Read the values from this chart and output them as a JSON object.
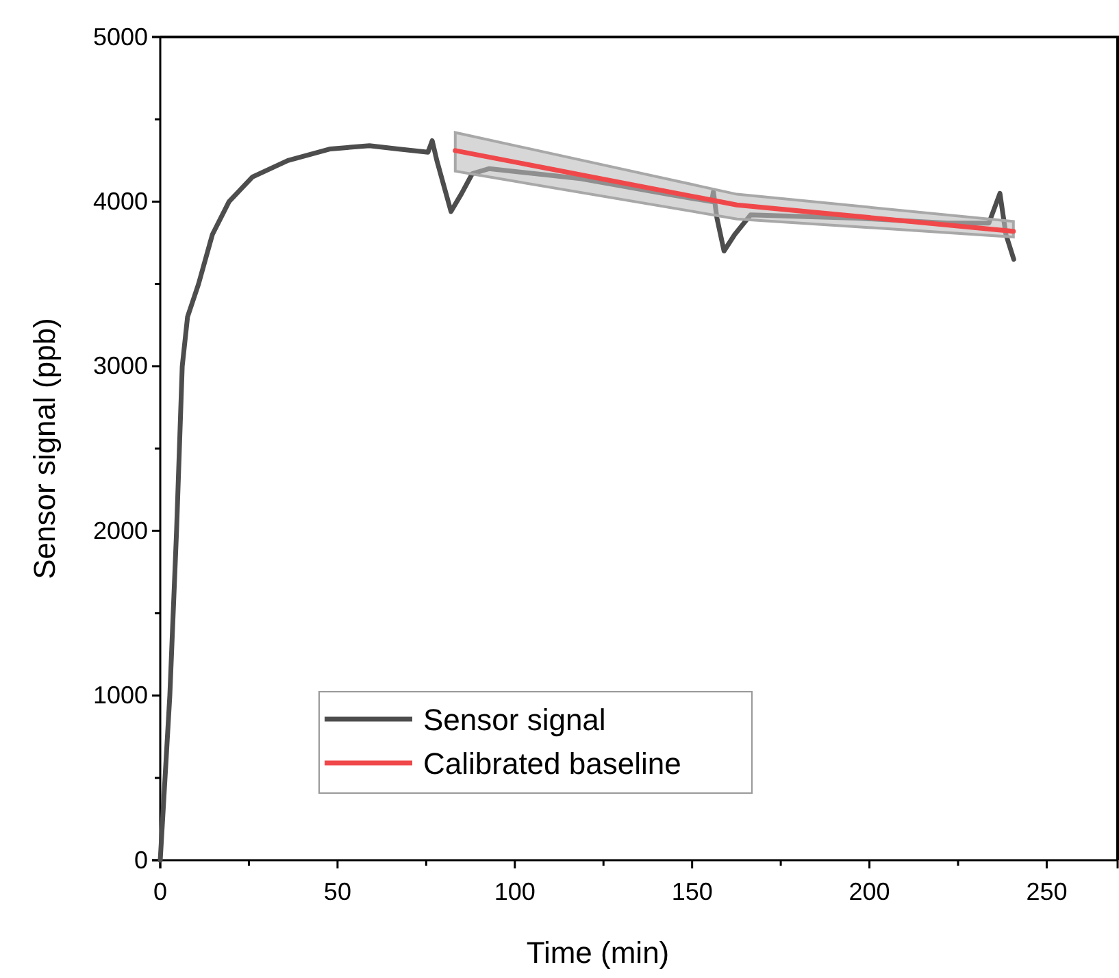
{
  "chart_data": {
    "type": "line",
    "xlabel": "Time (min)",
    "ylabel": "Sensor signal (ppb)",
    "xlim": [
      0,
      270
    ],
    "ylim": [
      0,
      5000
    ],
    "xticks": [
      0,
      50,
      100,
      150,
      200,
      250
    ],
    "yticks": [
      0,
      1000,
      2000,
      3000,
      4000,
      5000
    ],
    "legend": "bottom",
    "grid": false,
    "series": [
      {
        "name": "Sensor signal",
        "color": "#4d4d4d",
        "x": [
          0,
          2.7,
          4.6,
          6.2,
          7.7,
          10.8,
          14.7,
          19.4,
          26,
          36,
          48,
          59,
          67,
          75.5,
          76.7,
          78,
          82,
          85,
          88,
          92.7,
          118.5,
          144.5,
          155.5,
          156,
          157,
          159,
          162,
          166.5,
          196,
          222,
          233.7,
          236.8,
          238.5,
          240.7
        ],
        "values": [
          0,
          1000,
          2000,
          3000,
          3300,
          3500,
          3800,
          4000,
          4150,
          4250,
          4320,
          4340,
          4320,
          4300,
          4370,
          4250,
          3940,
          4050,
          4170,
          4200,
          4140,
          4040,
          4000,
          4060,
          3900,
          3700,
          3800,
          3920,
          3900,
          3870,
          3870,
          4050,
          3800,
          3650
        ]
      },
      {
        "name": "Calibrated baseline",
        "color": "#f0484a",
        "x": [
          83.2,
          162.6,
          240.6
        ],
        "values": [
          4310,
          3980,
          3820
        ],
        "lower": [
          4185,
          3895,
          3785
        ],
        "upper": [
          4420,
          4045,
          3880
        ]
      }
    ]
  }
}
